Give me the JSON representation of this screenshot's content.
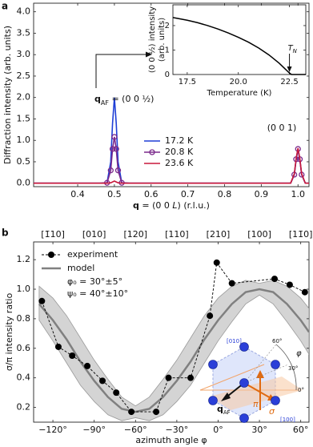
{
  "chart_data": [
    {
      "type": "line",
      "panel_label": "a",
      "ylabel": "Diffraction intensity (arb. units)",
      "xlabel_parts": [
        "q",
        " = (0 0 ",
        "L",
        ") (r.l.u.)"
      ],
      "peak_label_parts": [
        "q",
        "AF",
        " = (0 0 ½)"
      ],
      "peak2_label": "(0 0 1)",
      "xlim": [
        0.28,
        1.03
      ],
      "ylim": [
        -0.08,
        4.2
      ],
      "xticks": [
        0.4,
        0.5,
        0.6,
        0.7,
        0.8,
        0.9,
        {
          "value": 1,
          "label": "1.0"
        }
      ],
      "yticks": [
        {
          "value": 0,
          "label": "0.0"
        },
        0.5,
        {
          "value": 1,
          "label": "1.0"
        },
        1.5,
        {
          "value": 2,
          "label": "2.0"
        },
        2.5,
        {
          "value": 3,
          "label": "3.0"
        },
        3.5,
        {
          "value": 4,
          "label": "4.0"
        }
      ],
      "x": [
        0.28,
        0.4,
        0.46,
        0.48,
        0.49,
        0.495,
        0.5,
        0.505,
        0.51,
        0.52,
        0.54,
        0.6,
        0.7,
        0.8,
        0.9,
        0.96,
        0.98,
        0.99,
        0.995,
        1.0,
        1.005,
        1.01,
        1.02,
        1.03
      ],
      "series": [
        {
          "name": "17.2 K",
          "color": "#1f3fd6",
          "marker": false,
          "values": [
            0,
            0,
            0,
            0.01,
            0.5,
            1.4,
            2.0,
            1.4,
            0.5,
            0.01,
            0,
            0,
            0,
            0,
            0,
            0,
            0,
            0.2,
            0.55,
            0.78,
            0.55,
            0.2,
            0,
            0
          ]
        },
        {
          "name": "20.8 K",
          "color": "#7b2a8c",
          "marker": true,
          "values": [
            0,
            0,
            0,
            0.01,
            0.3,
            0.8,
            1.08,
            0.8,
            0.3,
            0.01,
            0,
            0,
            0,
            0,
            0,
            0,
            0,
            0.2,
            0.56,
            0.8,
            0.56,
            0.2,
            0,
            0
          ]
        },
        {
          "name": "23.6 K",
          "color": "#c8193c",
          "marker": false,
          "values": [
            0,
            0,
            0,
            0,
            0.01,
            0.03,
            0.05,
            0.03,
            0.01,
            0,
            0,
            0,
            0,
            0,
            0,
            0,
            0,
            0.22,
            0.58,
            0.82,
            0.58,
            0.22,
            0,
            0
          ]
        }
      ]
    },
    {
      "type": "line",
      "ylabel_lines": [
        "(0 0 ½) intensity",
        "(arb. units)"
      ],
      "xlabel": "Temperature (K)",
      "tn_symbol": "T",
      "tn_sub": "N",
      "tn_value": 22.5,
      "xlim": [
        16.8,
        23.3
      ],
      "ylim": [
        0,
        2.85
      ],
      "xticks": [
        17.5,
        {
          "value": 20,
          "label": "20.0"
        },
        22.5
      ],
      "yticks": [
        0,
        1,
        2
      ],
      "x": [
        16.8,
        17.5,
        18,
        18.5,
        19,
        19.5,
        20,
        20.5,
        21,
        21.5,
        22,
        22.3,
        22.5,
        22.6,
        23.3
      ],
      "series": [
        {
          "color": "#000000",
          "values": [
            2.33,
            2.22,
            2.12,
            2.0,
            1.86,
            1.7,
            1.52,
            1.32,
            1.08,
            0.8,
            0.46,
            0.22,
            0.06,
            0,
            0
          ]
        }
      ]
    },
    {
      "type": "line",
      "panel_label": "b",
      "ylabel": "σ/π intensity ratio",
      "xlabel": "azimuth angle φ",
      "fit_notes": [
        "φ₀ = 30°±5°",
        "ψ₀ = 40°±10°"
      ],
      "xlim": [
        -134,
        66
      ],
      "ylim": [
        0.1,
        1.32
      ],
      "xticks": [
        {
          "value": -120,
          "label": "−120°"
        },
        {
          "value": -90,
          "label": "−90°"
        },
        {
          "value": -60,
          "label": "−60°"
        },
        {
          "value": -30,
          "label": "−30°"
        },
        {
          "value": 0,
          "label": "0°"
        },
        {
          "value": 30,
          "label": "30°"
        },
        {
          "value": 60,
          "label": "60°"
        }
      ],
      "top_ticks": [
        {
          "value": -120,
          "label": "[1̄10]"
        },
        {
          "value": -90,
          "label": "[010]"
        },
        {
          "value": -60,
          "label": "[120]"
        },
        {
          "value": -30,
          "label": "[110]"
        },
        {
          "value": 0,
          "label": "[210]"
        },
        {
          "value": 30,
          "label": "[100]"
        },
        {
          "value": 60,
          "label": "[11̄0]"
        }
      ],
      "yticks": [
        0.2,
        0.4,
        0.6,
        0.8,
        {
          "value": 1,
          "label": "1.0"
        },
        1.2
      ],
      "series": [
        {
          "name": "experiment",
          "color": "#000000",
          "x": [
            -128,
            -116,
            -106,
            -95,
            -84,
            -74,
            -63,
            -45,
            -36,
            -20,
            -6,
            -1,
            10,
            41,
            52,
            63
          ],
          "values": [
            0.92,
            0.61,
            0.55,
            0.48,
            0.38,
            0.3,
            0.17,
            0.17,
            0.4,
            0.4,
            0.82,
            1.18,
            1.04,
            1.07,
            1.03,
            0.98
          ]
        },
        {
          "name": "model",
          "color": "#808080",
          "x": [
            -130,
            -120,
            -110,
            -100,
            -90,
            -80,
            -70,
            -60,
            -50,
            -40,
            -30,
            -20,
            -10,
            0,
            10,
            20,
            30,
            40,
            50,
            60,
            66
          ],
          "values": [
            0.9,
            0.79,
            0.66,
            0.51,
            0.38,
            0.27,
            0.19,
            0.17,
            0.19,
            0.27,
            0.38,
            0.51,
            0.66,
            0.79,
            0.9,
            0.98,
            1.0,
            0.98,
            0.9,
            0.79,
            0.71
          ]
        }
      ],
      "band": {
        "color": "#d4d4d4",
        "x": [
          -130,
          -120,
          -110,
          -100,
          -90,
          -80,
          -70,
          -60,
          -50,
          -40,
          -30,
          -20,
          -10,
          0,
          10,
          20,
          30,
          40,
          50,
          60,
          66
        ],
        "lower": [
          0.79,
          0.65,
          0.5,
          0.35,
          0.24,
          0.15,
          0.11,
          0.13,
          0.11,
          0.15,
          0.24,
          0.35,
          0.5,
          0.65,
          0.78,
          0.9,
          0.96,
          0.9,
          0.78,
          0.65,
          0.56
        ],
        "upper": [
          1.02,
          0.94,
          0.82,
          0.67,
          0.52,
          0.39,
          0.27,
          0.21,
          0.27,
          0.39,
          0.52,
          0.67,
          0.82,
          0.94,
          1.02,
          1.06,
          1.04,
          1.06,
          1.02,
          0.94,
          0.87
        ]
      }
    }
  ],
  "diagram": {
    "dir_010": "[010]",
    "dir_100": "[100]",
    "angle_60": "60°",
    "angle_30": "30°",
    "angle_0": "0°",
    "phi": "φ",
    "q": "q",
    "q_sub": "AF",
    "pi": "π",
    "sigma": "σ"
  }
}
